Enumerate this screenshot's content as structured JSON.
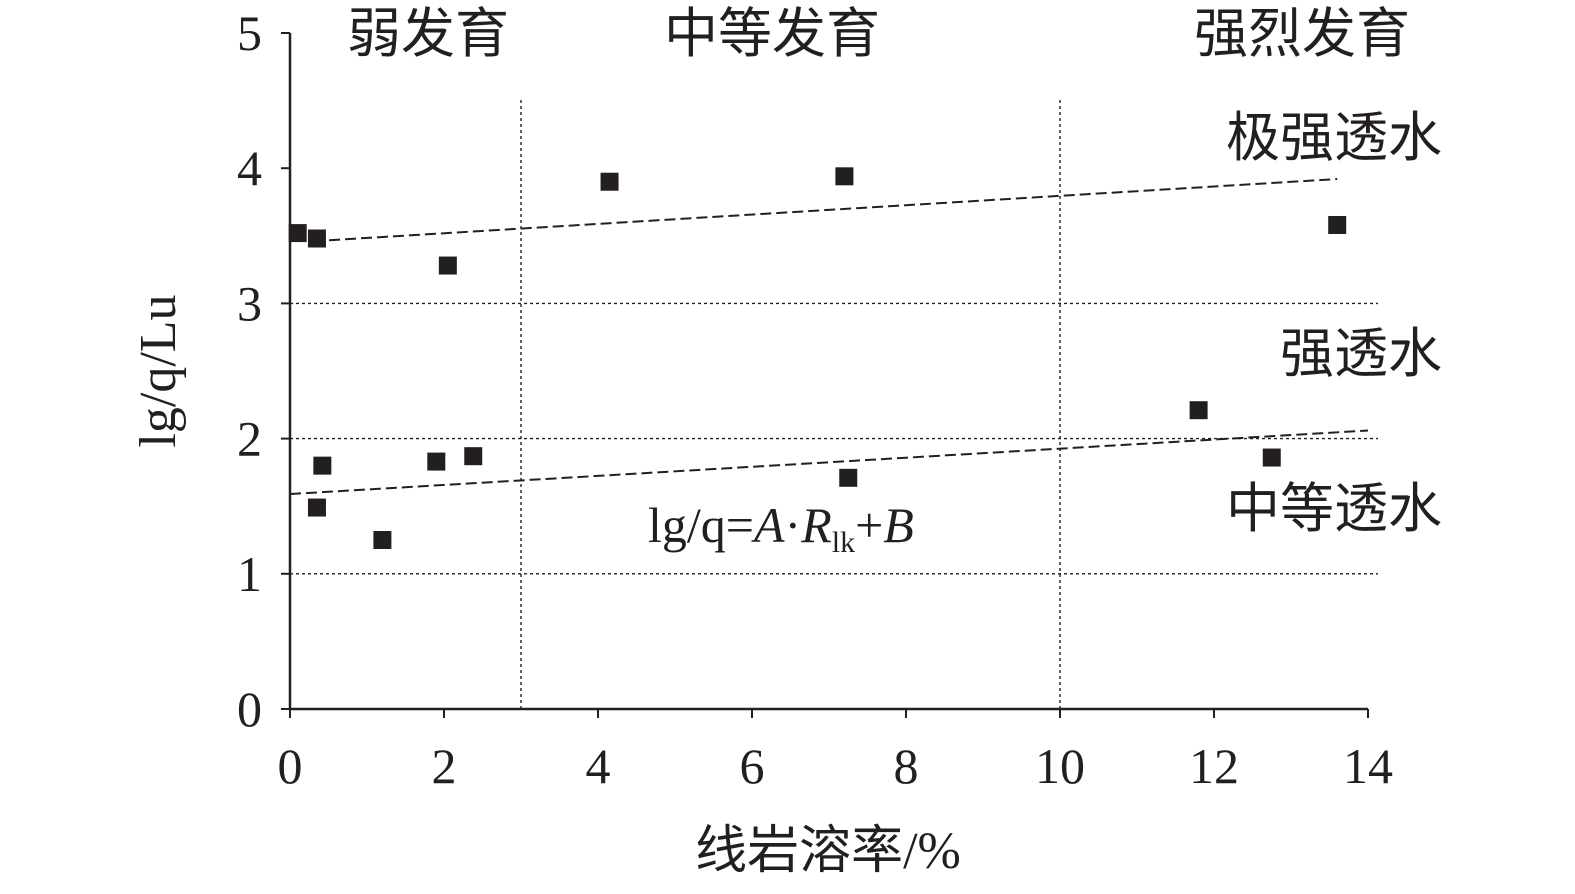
{
  "chart_data": {
    "type": "scatter",
    "title": "",
    "xlabel": "线岩溶率/%",
    "ylabel": "lg/q/Lu",
    "xlim": [
      0,
      14
    ],
    "ylim": [
      0,
      5
    ],
    "x_ticks": [
      "0",
      "2",
      "4",
      "6",
      "8",
      "10",
      "12",
      "14"
    ],
    "y_ticks": [
      "0",
      "1",
      "2",
      "3",
      "4",
      "5"
    ],
    "colors": {
      "marker": "#231f20",
      "axis": "#231f20"
    },
    "development_zones": [
      {
        "label": "弱发育",
        "x_range": [
          0,
          3
        ]
      },
      {
        "label": "中等发育",
        "x_range": [
          3,
          10
        ]
      },
      {
        "label": "强烈发育",
        "x_range": [
          10,
          14
        ]
      }
    ],
    "permeability_zones": [
      {
        "label": "极强透水",
        "y_range": [
          3,
          5
        ]
      },
      {
        "label": "强透水",
        "y_range": [
          2,
          3
        ]
      },
      {
        "label": "中等透水",
        "y_range": [
          1,
          2
        ]
      }
    ],
    "reference_lines": {
      "vertical_x": [
        3,
        10
      ],
      "horizontal_y": [
        1,
        2,
        3
      ]
    },
    "series": [
      {
        "points": [
          {
            "x": 0.1,
            "y": 3.52
          },
          {
            "x": 0.35,
            "y": 3.48
          },
          {
            "x": 2.05,
            "y": 3.28
          },
          {
            "x": 4.15,
            "y": 3.9
          },
          {
            "x": 7.2,
            "y": 3.94
          },
          {
            "x": 13.6,
            "y": 3.58
          }
        ],
        "trend": {
          "from": [
            0.3,
            3.46
          ],
          "to": [
            13.6,
            3.92
          ]
        }
      },
      {
        "points": [
          {
            "x": 0.35,
            "y": 1.49
          },
          {
            "x": 0.42,
            "y": 1.8
          },
          {
            "x": 1.2,
            "y": 1.25
          },
          {
            "x": 1.9,
            "y": 1.83
          },
          {
            "x": 2.38,
            "y": 1.87
          },
          {
            "x": 7.25,
            "y": 1.71
          },
          {
            "x": 11.8,
            "y": 2.21
          },
          {
            "x": 12.75,
            "y": 1.86
          }
        ],
        "trend": {
          "from": [
            0.0,
            1.59
          ],
          "to": [
            14.0,
            2.06
          ]
        }
      }
    ],
    "formula": {
      "lhs": "lg/q=",
      "A": "A",
      "dot": "·",
      "R": "R",
      "R_sub": "lk",
      "plus": "+",
      "B": "B"
    }
  }
}
